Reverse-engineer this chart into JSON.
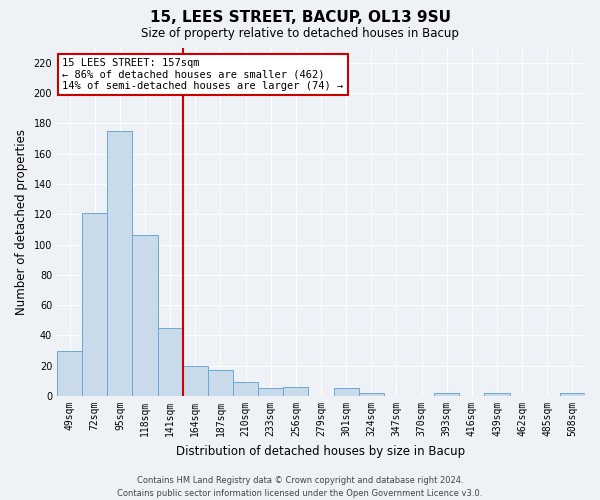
{
  "title": "15, LEES STREET, BACUP, OL13 9SU",
  "subtitle": "Size of property relative to detached houses in Bacup",
  "xlabel": "Distribution of detached houses by size in Bacup",
  "ylabel": "Number of detached properties",
  "bar_labels": [
    "49sqm",
    "72sqm",
    "95sqm",
    "118sqm",
    "141sqm",
    "164sqm",
    "187sqm",
    "210sqm",
    "233sqm",
    "256sqm",
    "279sqm",
    "301sqm",
    "324sqm",
    "347sqm",
    "370sqm",
    "393sqm",
    "416sqm",
    "439sqm",
    "462sqm",
    "485sqm",
    "508sqm"
  ],
  "bar_values": [
    30,
    121,
    175,
    106,
    45,
    20,
    17,
    9,
    5,
    6,
    0,
    5,
    2,
    0,
    0,
    2,
    0,
    2,
    0,
    0,
    2
  ],
  "bar_color": "#c9daea",
  "bar_edge_color": "#6aaad4",
  "vline_x": 4.5,
  "vline_color": "#cc0000",
  "annotation_line1": "15 LEES STREET: 157sqm",
  "annotation_line2": "← 86% of detached houses are smaller (462)",
  "annotation_line3": "14% of semi-detached houses are larger (74) →",
  "annotation_box_color": "#ffffff",
  "annotation_box_edge": "#cc0000",
  "ylim": [
    0,
    230
  ],
  "yticks": [
    0,
    20,
    40,
    60,
    80,
    100,
    120,
    140,
    160,
    180,
    200,
    220
  ],
  "footer1": "Contains HM Land Registry data © Crown copyright and database right 2024.",
  "footer2": "Contains public sector information licensed under the Open Government Licence v3.0.",
  "bg_color": "#eef2f7",
  "plot_bg_color": "#eef2f7",
  "grid_color": "#ffffff",
  "fig_width": 6.0,
  "fig_height": 5.0,
  "title_fontsize": 11,
  "subtitle_fontsize": 8.5,
  "tick_fontsize": 7,
  "label_fontsize": 8.5,
  "footer_fontsize": 6
}
